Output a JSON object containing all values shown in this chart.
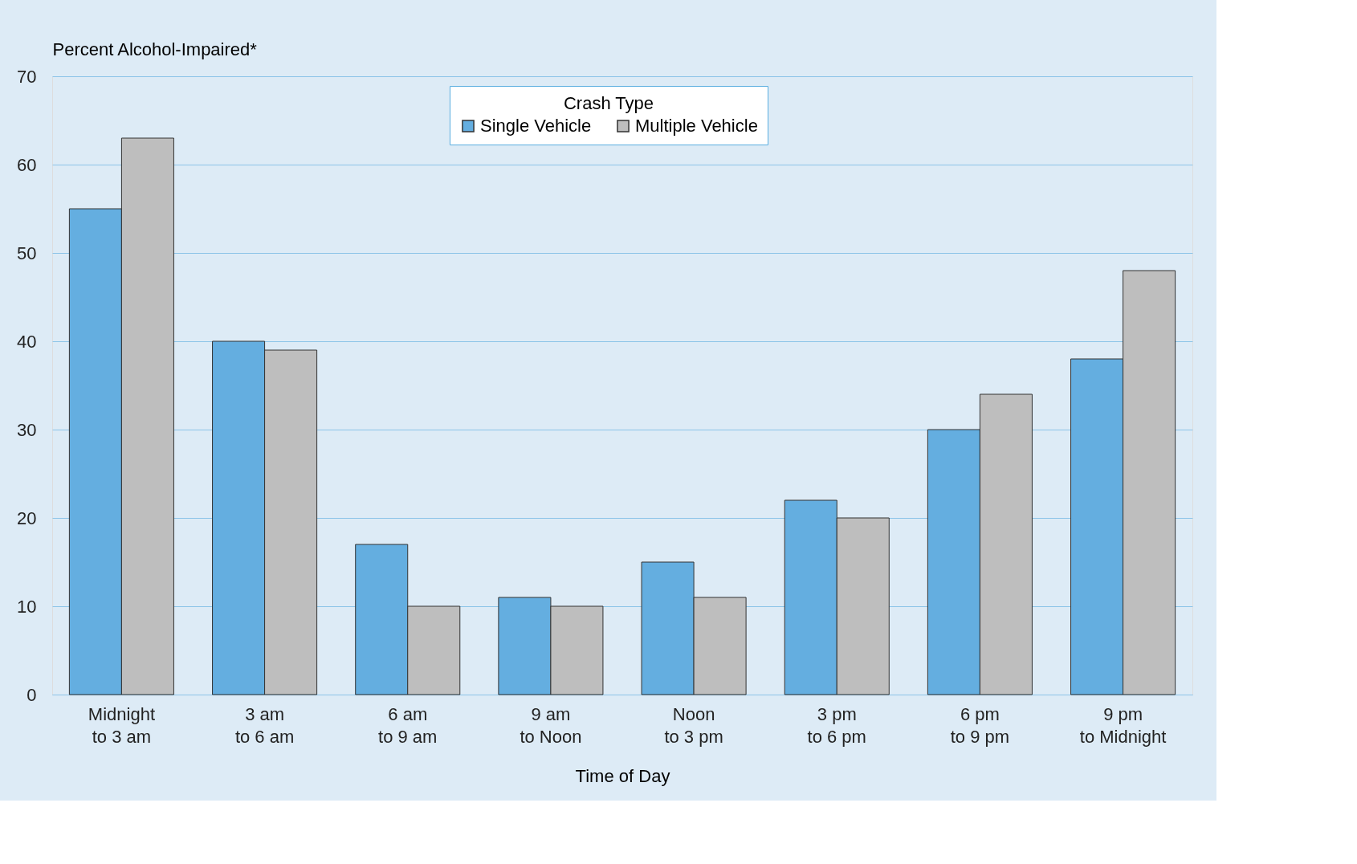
{
  "chart_data": {
    "type": "bar",
    "categories": [
      "Midnight\nto 3 am",
      "3 am\nto 6 am",
      "6 am\nto 9 am",
      "9 am\nto Noon",
      "Noon\nto 3 pm",
      "3 pm\nto 6 pm",
      "6 pm\nto 9 pm",
      "9 pm\nto Midnight"
    ],
    "series": [
      {
        "name": "Single Vehicle",
        "color": "#64aee0",
        "values": [
          55,
          40,
          17,
          11,
          15,
          22,
          30,
          38
        ]
      },
      {
        "name": "Multiple Vehicle",
        "color": "#bebebe",
        "values": [
          63,
          39,
          10,
          10,
          11,
          20,
          34,
          48
        ]
      }
    ],
    "ylabel": "Percent Alcohol-Impaired*",
    "xlabel": "Time of Day",
    "legend_title": "Crash Type",
    "ylim": [
      0,
      70
    ],
    "yticks": [
      0,
      10,
      20,
      30,
      40,
      50,
      60,
      70
    ],
    "grid": "y",
    "legend": "top"
  }
}
